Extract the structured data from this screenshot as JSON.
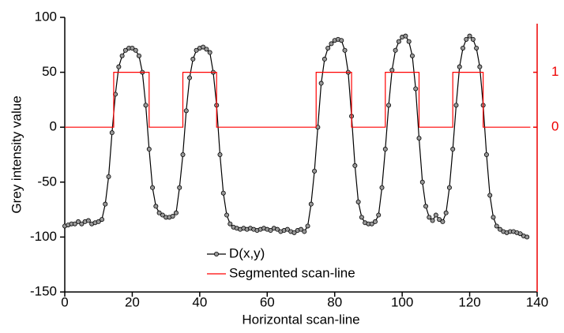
{
  "chart_data": {
    "type": "line",
    "xlabel": "Horizontal scan-line",
    "ylabel": "Grey intensity value",
    "xlim": [
      0,
      140
    ],
    "xticks": [
      0,
      20,
      40,
      60,
      80,
      100,
      120,
      140
    ],
    "ylim": [
      -150,
      100
    ],
    "yticks": [
      -150,
      -100,
      -50,
      0,
      50,
      100
    ],
    "y2lim": [
      -3,
      2
    ],
    "y2ticks": [
      0,
      1
    ],
    "series": [
      {
        "name": "D(x,y)",
        "color": "#000000",
        "marker": "circle",
        "x": [
          0,
          1,
          2,
          3,
          4,
          5,
          6,
          7,
          8,
          9,
          10,
          11,
          12,
          13,
          14,
          15,
          16,
          17,
          18,
          19,
          20,
          21,
          22,
          23,
          24,
          25,
          26,
          27,
          28,
          29,
          30,
          31,
          32,
          33,
          34,
          35,
          36,
          37,
          38,
          39,
          40,
          41,
          42,
          43,
          44,
          45,
          46,
          47,
          48,
          49,
          50,
          51,
          52,
          53,
          54,
          55,
          56,
          57,
          58,
          59,
          60,
          61,
          62,
          63,
          64,
          65,
          66,
          67,
          68,
          69,
          70,
          71,
          72,
          73,
          74,
          75,
          76,
          77,
          78,
          79,
          80,
          81,
          82,
          83,
          84,
          85,
          86,
          87,
          88,
          89,
          90,
          91,
          92,
          93,
          94,
          95,
          96,
          97,
          98,
          99,
          100,
          101,
          102,
          103,
          104,
          105,
          106,
          107,
          108,
          109,
          110,
          111,
          112,
          113,
          114,
          115,
          116,
          117,
          118,
          119,
          120,
          121,
          122,
          123,
          124,
          125,
          126,
          127,
          128,
          129,
          130,
          131,
          132,
          133,
          134,
          135,
          136,
          137
        ],
        "values": [
          -90,
          -89,
          -88,
          -88,
          -86,
          -88,
          -86,
          -85,
          -88,
          -87,
          -86,
          -84,
          -70,
          -45,
          -5,
          30,
          55,
          65,
          70,
          72,
          72,
          70,
          65,
          50,
          20,
          -20,
          -55,
          -72,
          -78,
          -80,
          -82,
          -82,
          -81,
          -78,
          -55,
          -25,
          15,
          45,
          62,
          70,
          72,
          73,
          71,
          68,
          50,
          20,
          -25,
          -60,
          -80,
          -88,
          -91,
          -92,
          -93,
          -92,
          -93,
          -92,
          -93,
          -94,
          -93,
          -92,
          -93,
          -94,
          -92,
          -93,
          -95,
          -94,
          -93,
          -95,
          -96,
          -94,
          -93,
          -95,
          -90,
          -70,
          -40,
          0,
          40,
          62,
          72,
          76,
          79,
          80,
          79,
          70,
          50,
          10,
          -35,
          -68,
          -82,
          -87,
          -88,
          -88,
          -86,
          -80,
          -55,
          -20,
          20,
          52,
          70,
          78,
          82,
          83,
          78,
          65,
          35,
          -10,
          -50,
          -72,
          -82,
          -85,
          -80,
          -84,
          -86,
          -78,
          -55,
          -20,
          20,
          55,
          72,
          80,
          83,
          80,
          72,
          55,
          20,
          -25,
          -62,
          -82,
          -90,
          -93,
          -95,
          -96,
          -95,
          -95,
          -96,
          -97,
          -99,
          -100
        ]
      },
      {
        "name": "Segmented scan-line",
        "color": "#ff0000",
        "axis": "y2",
        "x": [
          0,
          14.5,
          14.5,
          25,
          25,
          35,
          35,
          45,
          45,
          74.5,
          74.5,
          85,
          85,
          95,
          95,
          105,
          105,
          115,
          115,
          124,
          124,
          138
        ],
        "values": [
          0,
          0,
          1,
          1,
          0,
          0,
          1,
          1,
          0,
          0,
          1,
          1,
          0,
          0,
          1,
          1,
          0,
          0,
          1,
          1,
          0,
          0
        ]
      }
    ]
  }
}
